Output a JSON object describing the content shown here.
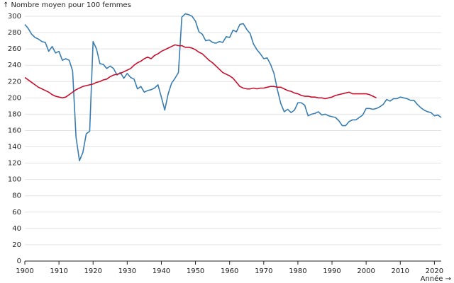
{
  "chart_data": {
    "type": "line",
    "y_label": "↑ Nombre moyen pour 100 femmes",
    "x_label": "Année →",
    "x": [
      1900,
      1901,
      1902,
      1903,
      1904,
      1905,
      1906,
      1907,
      1908,
      1909,
      1910,
      1911,
      1912,
      1913,
      1914,
      1915,
      1916,
      1917,
      1918,
      1919,
      1920,
      1921,
      1922,
      1923,
      1924,
      1925,
      1926,
      1927,
      1928,
      1929,
      1930,
      1931,
      1932,
      1933,
      1934,
      1935,
      1936,
      1937,
      1938,
      1939,
      1940,
      1941,
      1942,
      1943,
      1944,
      1945,
      1946,
      1947,
      1948,
      1949,
      1950,
      1951,
      1952,
      1953,
      1954,
      1955,
      1956,
      1957,
      1958,
      1959,
      1960,
      1961,
      1962,
      1963,
      1964,
      1965,
      1966,
      1967,
      1968,
      1969,
      1970,
      1971,
      1972,
      1973,
      1974,
      1975,
      1976,
      1977,
      1978,
      1979,
      1980,
      1981,
      1982,
      1983,
      1984,
      1985,
      1986,
      1987,
      1988,
      1989,
      1990,
      1991,
      1992,
      1993,
      1994,
      1995,
      1996,
      1997,
      1998,
      1999,
      2000,
      2001,
      2002,
      2003,
      2004,
      2005,
      2006,
      2007,
      2008,
      2009,
      2010,
      2011,
      2012,
      2013,
      2014,
      2015,
      2016,
      2017,
      2018,
      2019,
      2020,
      2021,
      2022
    ],
    "series": [
      {
        "color": "#3a7db0",
        "values": [
          290,
          285,
          278,
          274,
          272,
          269,
          268,
          257,
          263,
          255,
          257,
          246,
          248,
          246,
          233,
          152,
          123,
          133,
          156,
          159,
          269,
          260,
          242,
          241,
          236,
          239,
          236,
          228,
          231,
          224,
          230,
          225,
          223,
          211,
          214,
          207,
          209,
          210,
          212,
          216,
          201,
          185,
          205,
          218,
          224,
          231,
          299,
          303,
          302,
          300,
          294,
          281,
          278,
          270,
          271,
          268,
          267,
          269,
          268,
          275,
          274,
          283,
          281,
          290,
          291,
          284,
          279,
          266,
          259,
          254,
          248,
          249,
          241,
          230,
          210,
          193,
          183,
          186,
          182,
          185,
          194,
          194,
          191,
          178,
          180,
          181,
          183,
          179,
          180,
          178,
          177,
          176,
          172,
          166,
          166,
          171,
          173,
          173,
          176,
          179,
          187,
          187,
          186,
          187,
          189,
          192,
          198,
          196,
          199,
          199,
          201,
          200,
          199,
          197,
          197,
          192,
          188,
          185,
          183,
          182,
          178,
          179,
          176
        ]
      },
      {
        "color": "#c8102e",
        "values": [
          225,
          222,
          219,
          216,
          213,
          211,
          209,
          207,
          204,
          202,
          201,
          200,
          201,
          204,
          207,
          210,
          212,
          214,
          215,
          216,
          217,
          219,
          220,
          222,
          223,
          226,
          228,
          229,
          230,
          232,
          234,
          236,
          240,
          243,
          245,
          248,
          250,
          248,
          252,
          254,
          257,
          259,
          261,
          263,
          265,
          264,
          264,
          262,
          262,
          261,
          259,
          256,
          254,
          250,
          246,
          243,
          239,
          235,
          231,
          229,
          227,
          224,
          219,
          214,
          212,
          211,
          211,
          212,
          211,
          212,
          212,
          213,
          214,
          214,
          213,
          213,
          211,
          209,
          208,
          206,
          205,
          203,
          202,
          202,
          201,
          201,
          200,
          200,
          199,
          200,
          201,
          203,
          204,
          205,
          206,
          207,
          205,
          205,
          205,
          205,
          205,
          204,
          202,
          200,
          null,
          null,
          null,
          null,
          null,
          null,
          null,
          null,
          null,
          null,
          null,
          null,
          null,
          null,
          null,
          null,
          null,
          null,
          null
        ]
      }
    ],
    "xlim": [
      1900,
      2022
    ],
    "xticks": [
      1900,
      1910,
      1920,
      1930,
      1940,
      1950,
      1960,
      1970,
      1980,
      1990,
      2000,
      2010,
      2020
    ],
    "ylim": [
      0,
      300
    ],
    "yticks": [
      0,
      20,
      40,
      60,
      80,
      100,
      120,
      140,
      160,
      180,
      200,
      220,
      240,
      260,
      280,
      300
    ],
    "grid": true
  }
}
